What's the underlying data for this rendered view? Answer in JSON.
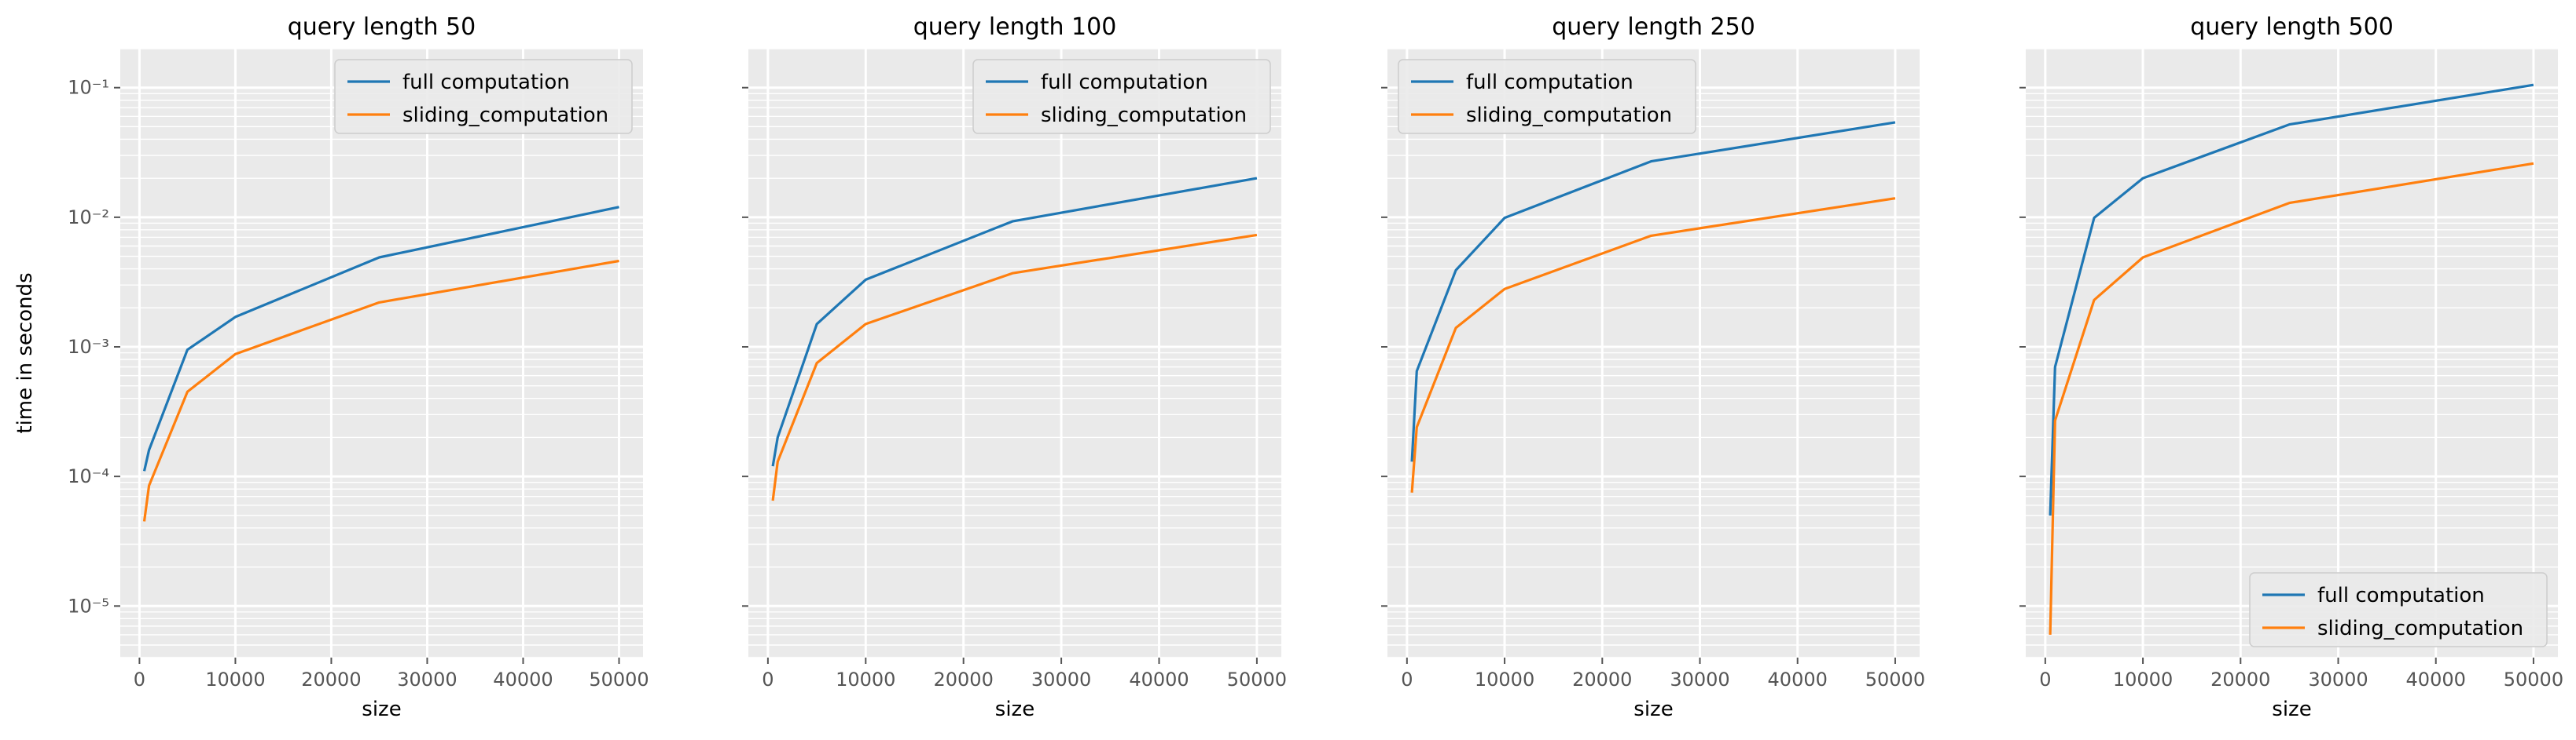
{
  "figure": {
    "ylabel": "time in seconds",
    "xlabel": "size",
    "series_colors": {
      "full computation": "#1f77b4",
      "sliding_computation": "#ff7f0e"
    },
    "axes_facecolor": "#eaeaea",
    "grid_color": "#ffffff",
    "tick_label_color": "#555555"
  },
  "chart_data": [
    {
      "type": "line",
      "title": "query length 50",
      "xlabel": "size",
      "ylabel": "time in seconds",
      "yscale": "log",
      "xlim": [
        -2000,
        52500
      ],
      "ylim": [
        4e-06,
        0.2
      ],
      "xticks": [
        0,
        10000,
        20000,
        30000,
        40000,
        50000
      ],
      "xtick_labels": [
        "0",
        "10000",
        "20000",
        "30000",
        "40000",
        "50000"
      ],
      "ytick_labels": [
        "10⁻⁵",
        "10⁻⁴",
        "10⁻³",
        "10⁻²",
        "10⁻¹"
      ],
      "grid": true,
      "legend_position": "upper right",
      "x": [
        500,
        1000,
        5000,
        10000,
        25000,
        50000
      ],
      "series": [
        {
          "name": "full computation",
          "values": [
            0.00011,
            0.00016,
            0.00095,
            0.0017,
            0.0049,
            0.012
          ]
        },
        {
          "name": "sliding_computation",
          "values": [
            4.5e-05,
            8.5e-05,
            0.00045,
            0.00088,
            0.0022,
            0.0046
          ]
        }
      ]
    },
    {
      "type": "line",
      "title": "query length 100",
      "xlabel": "size",
      "ylabel": "",
      "yscale": "log",
      "xlim": [
        -2000,
        52500
      ],
      "ylim": [
        4e-06,
        0.2
      ],
      "xticks": [
        0,
        10000,
        20000,
        30000,
        40000,
        50000
      ],
      "xtick_labels": [
        "0",
        "10000",
        "20000",
        "30000",
        "40000",
        "50000"
      ],
      "ytick_labels": [],
      "grid": true,
      "legend_position": "upper right",
      "x": [
        500,
        1000,
        5000,
        10000,
        25000,
        50000
      ],
      "series": [
        {
          "name": "full computation",
          "values": [
            0.00012,
            0.0002,
            0.0015,
            0.0033,
            0.0093,
            0.02
          ]
        },
        {
          "name": "sliding_computation",
          "values": [
            6.5e-05,
            0.00013,
            0.00075,
            0.0015,
            0.0037,
            0.0073
          ]
        }
      ]
    },
    {
      "type": "line",
      "title": "query length 250",
      "xlabel": "size",
      "ylabel": "",
      "yscale": "log",
      "xlim": [
        -2000,
        52500
      ],
      "ylim": [
        4e-06,
        0.2
      ],
      "xticks": [
        0,
        10000,
        20000,
        30000,
        40000,
        50000
      ],
      "xtick_labels": [
        "0",
        "10000",
        "20000",
        "30000",
        "40000",
        "50000"
      ],
      "ytick_labels": [],
      "grid": true,
      "legend_position": "upper left",
      "x": [
        500,
        1000,
        5000,
        10000,
        25000,
        50000
      ],
      "series": [
        {
          "name": "full computation",
          "values": [
            0.00013,
            0.00065,
            0.0039,
            0.0099,
            0.027,
            0.054
          ]
        },
        {
          "name": "sliding_computation",
          "values": [
            7.5e-05,
            0.00024,
            0.0014,
            0.0028,
            0.0072,
            0.014
          ]
        }
      ]
    },
    {
      "type": "line",
      "title": "query length 500",
      "xlabel": "size",
      "ylabel": "",
      "yscale": "log",
      "xlim": [
        -2000,
        52500
      ],
      "ylim": [
        4e-06,
        0.2
      ],
      "xticks": [
        0,
        10000,
        20000,
        30000,
        40000,
        50000
      ],
      "xtick_labels": [
        "0",
        "10000",
        "20000",
        "30000",
        "40000",
        "50000"
      ],
      "ytick_labels": [],
      "grid": true,
      "legend_position": "lower right",
      "x": [
        500,
        1000,
        5000,
        10000,
        25000,
        50000
      ],
      "series": [
        {
          "name": "full computation",
          "values": [
            5e-05,
            0.0007,
            0.0099,
            0.02,
            0.052,
            0.105
          ]
        },
        {
          "name": "sliding_computation",
          "values": [
            6e-06,
            0.00027,
            0.0023,
            0.0049,
            0.0129,
            0.026
          ]
        }
      ]
    }
  ]
}
